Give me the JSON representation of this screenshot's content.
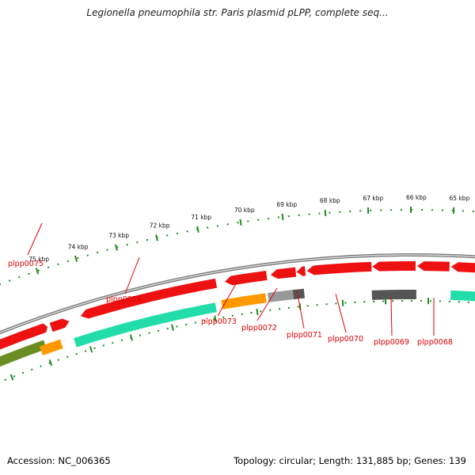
{
  "title": "Legionella pneumophila str. Paris plasmid pLPP, complete seq...",
  "scale_labels": [
    "75 kbp",
    "74 kbp",
    "73 kbp",
    "72 kbp",
    "71 kbp",
    "70 kbp",
    "69 kbp",
    "68 kbp",
    "67 kbp",
    "66 kbp",
    "65 kbp"
  ],
  "gene_labels": [
    "plpp0075",
    "plpp0074",
    "plpp0073",
    "plpp0072",
    "plpp0071",
    "plpp0070",
    "plpp0069",
    "plpp0068"
  ],
  "footer": {
    "accession": "Accession: NC_006365",
    "summary": "Topology: circular; Length: 131,885 bp; Genes: 139"
  },
  "colors": {
    "forward_gene": "#ee1111",
    "reverse_gene_teal": "#22ddaa",
    "orange_gene": "#ff9900",
    "olive_gene": "#6b8e23",
    "gray_gene": "#999999",
    "dark_gene": "#555555",
    "backbone": "#888888",
    "ticks": "#228B22",
    "label": "#dd0000"
  }
}
